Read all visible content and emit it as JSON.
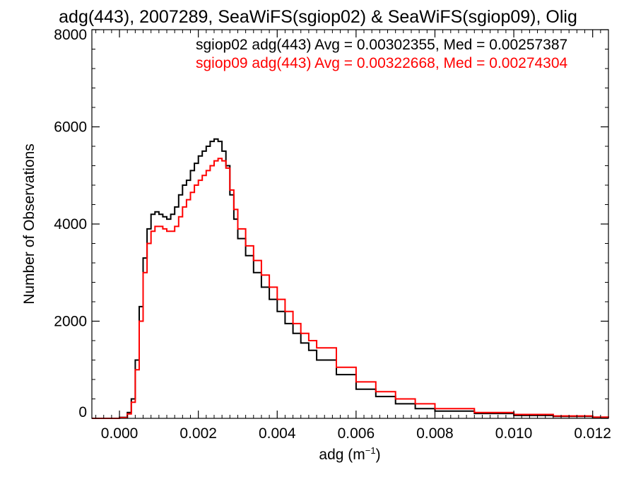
{
  "chart_data": {
    "type": "line",
    "title": "adg(443), 2007289, SeaWiFS(sgiop02) & SeaWiFS(sgiop09), Olig",
    "xlabel": "adg (m",
    "xlabel_sup": "−1",
    "xlabel_close": ")",
    "ylabel": "Number of Observations",
    "xlim": [
      -0.0007,
      0.0124
    ],
    "ylim": [
      0,
      8000
    ],
    "xticks": [
      0.0,
      0.002,
      0.004,
      0.006,
      0.008,
      0.01,
      0.012
    ],
    "xtick_labels": [
      "0.000",
      "0.002",
      "0.004",
      "0.006",
      "0.008",
      "0.010",
      "0.012"
    ],
    "yticks": [
      0,
      2000,
      4000,
      6000,
      8000
    ],
    "ytick_labels": [
      "0",
      "2000",
      "4000",
      "6000",
      "8000"
    ],
    "grid": false,
    "legend_position": "top-right",
    "annotations": [
      "sgiop02 adg(443) Avg = 0.00302355, Med = 0.00257387",
      "sgiop09 adg(443) Avg = 0.00322668, Med = 0.00274304"
    ],
    "series": [
      {
        "name": "sgiop02",
        "color": "#000000",
        "x": [
          -0.0007,
          -0.0002,
          0.0,
          0.0002,
          0.0003,
          0.0004,
          0.0005,
          0.0006,
          0.0007,
          0.0008,
          0.0009,
          0.001,
          0.0011,
          0.0012,
          0.0013,
          0.0014,
          0.0015,
          0.0016,
          0.0017,
          0.0018,
          0.0019,
          0.002,
          0.0021,
          0.0022,
          0.0023,
          0.0024,
          0.0025,
          0.0026,
          0.0027,
          0.0028,
          0.0029,
          0.003,
          0.0032,
          0.0034,
          0.0036,
          0.0038,
          0.004,
          0.0042,
          0.0044,
          0.0046,
          0.0048,
          0.005,
          0.0055,
          0.006,
          0.0065,
          0.007,
          0.0075,
          0.008,
          0.009,
          0.01,
          0.011,
          0.012,
          0.0124
        ],
        "values": [
          0,
          0,
          20,
          120,
          400,
          1200,
          2300,
          3300,
          3900,
          4200,
          4250,
          4200,
          4150,
          4100,
          4200,
          4350,
          4600,
          4800,
          4900,
          5100,
          5250,
          5400,
          5500,
          5600,
          5700,
          5750,
          5700,
          5500,
          5200,
          4600,
          4100,
          3700,
          3350,
          3000,
          2700,
          2450,
          2200,
          1950,
          1750,
          1550,
          1400,
          1200,
          900,
          600,
          450,
          300,
          200,
          150,
          100,
          60,
          40,
          20,
          10
        ]
      },
      {
        "name": "sgiop09",
        "color": "#ff0000",
        "x": [
          -0.0007,
          -0.0002,
          0.0,
          0.0002,
          0.0003,
          0.0004,
          0.0005,
          0.0006,
          0.0007,
          0.0008,
          0.0009,
          0.001,
          0.0011,
          0.0012,
          0.0013,
          0.0014,
          0.0015,
          0.0016,
          0.0017,
          0.0018,
          0.0019,
          0.002,
          0.0021,
          0.0022,
          0.0023,
          0.0024,
          0.0025,
          0.0026,
          0.0027,
          0.0028,
          0.0029,
          0.003,
          0.0032,
          0.0034,
          0.0036,
          0.0038,
          0.004,
          0.0042,
          0.0044,
          0.0046,
          0.0048,
          0.005,
          0.0055,
          0.006,
          0.0065,
          0.007,
          0.0075,
          0.008,
          0.009,
          0.01,
          0.011,
          0.012,
          0.0124
        ],
        "values": [
          0,
          0,
          15,
          90,
          330,
          1000,
          2000,
          3000,
          3600,
          3850,
          3950,
          3950,
          3900,
          3850,
          3850,
          3950,
          4150,
          4350,
          4500,
          4650,
          4800,
          4900,
          5000,
          5100,
          5200,
          5300,
          5350,
          5300,
          5150,
          4700,
          4300,
          3900,
          3550,
          3250,
          2950,
          2700,
          2450,
          2200,
          1950,
          1750,
          1600,
          1450,
          1050,
          750,
          550,
          400,
          300,
          200,
          120,
          80,
          50,
          25,
          10
        ]
      }
    ]
  }
}
